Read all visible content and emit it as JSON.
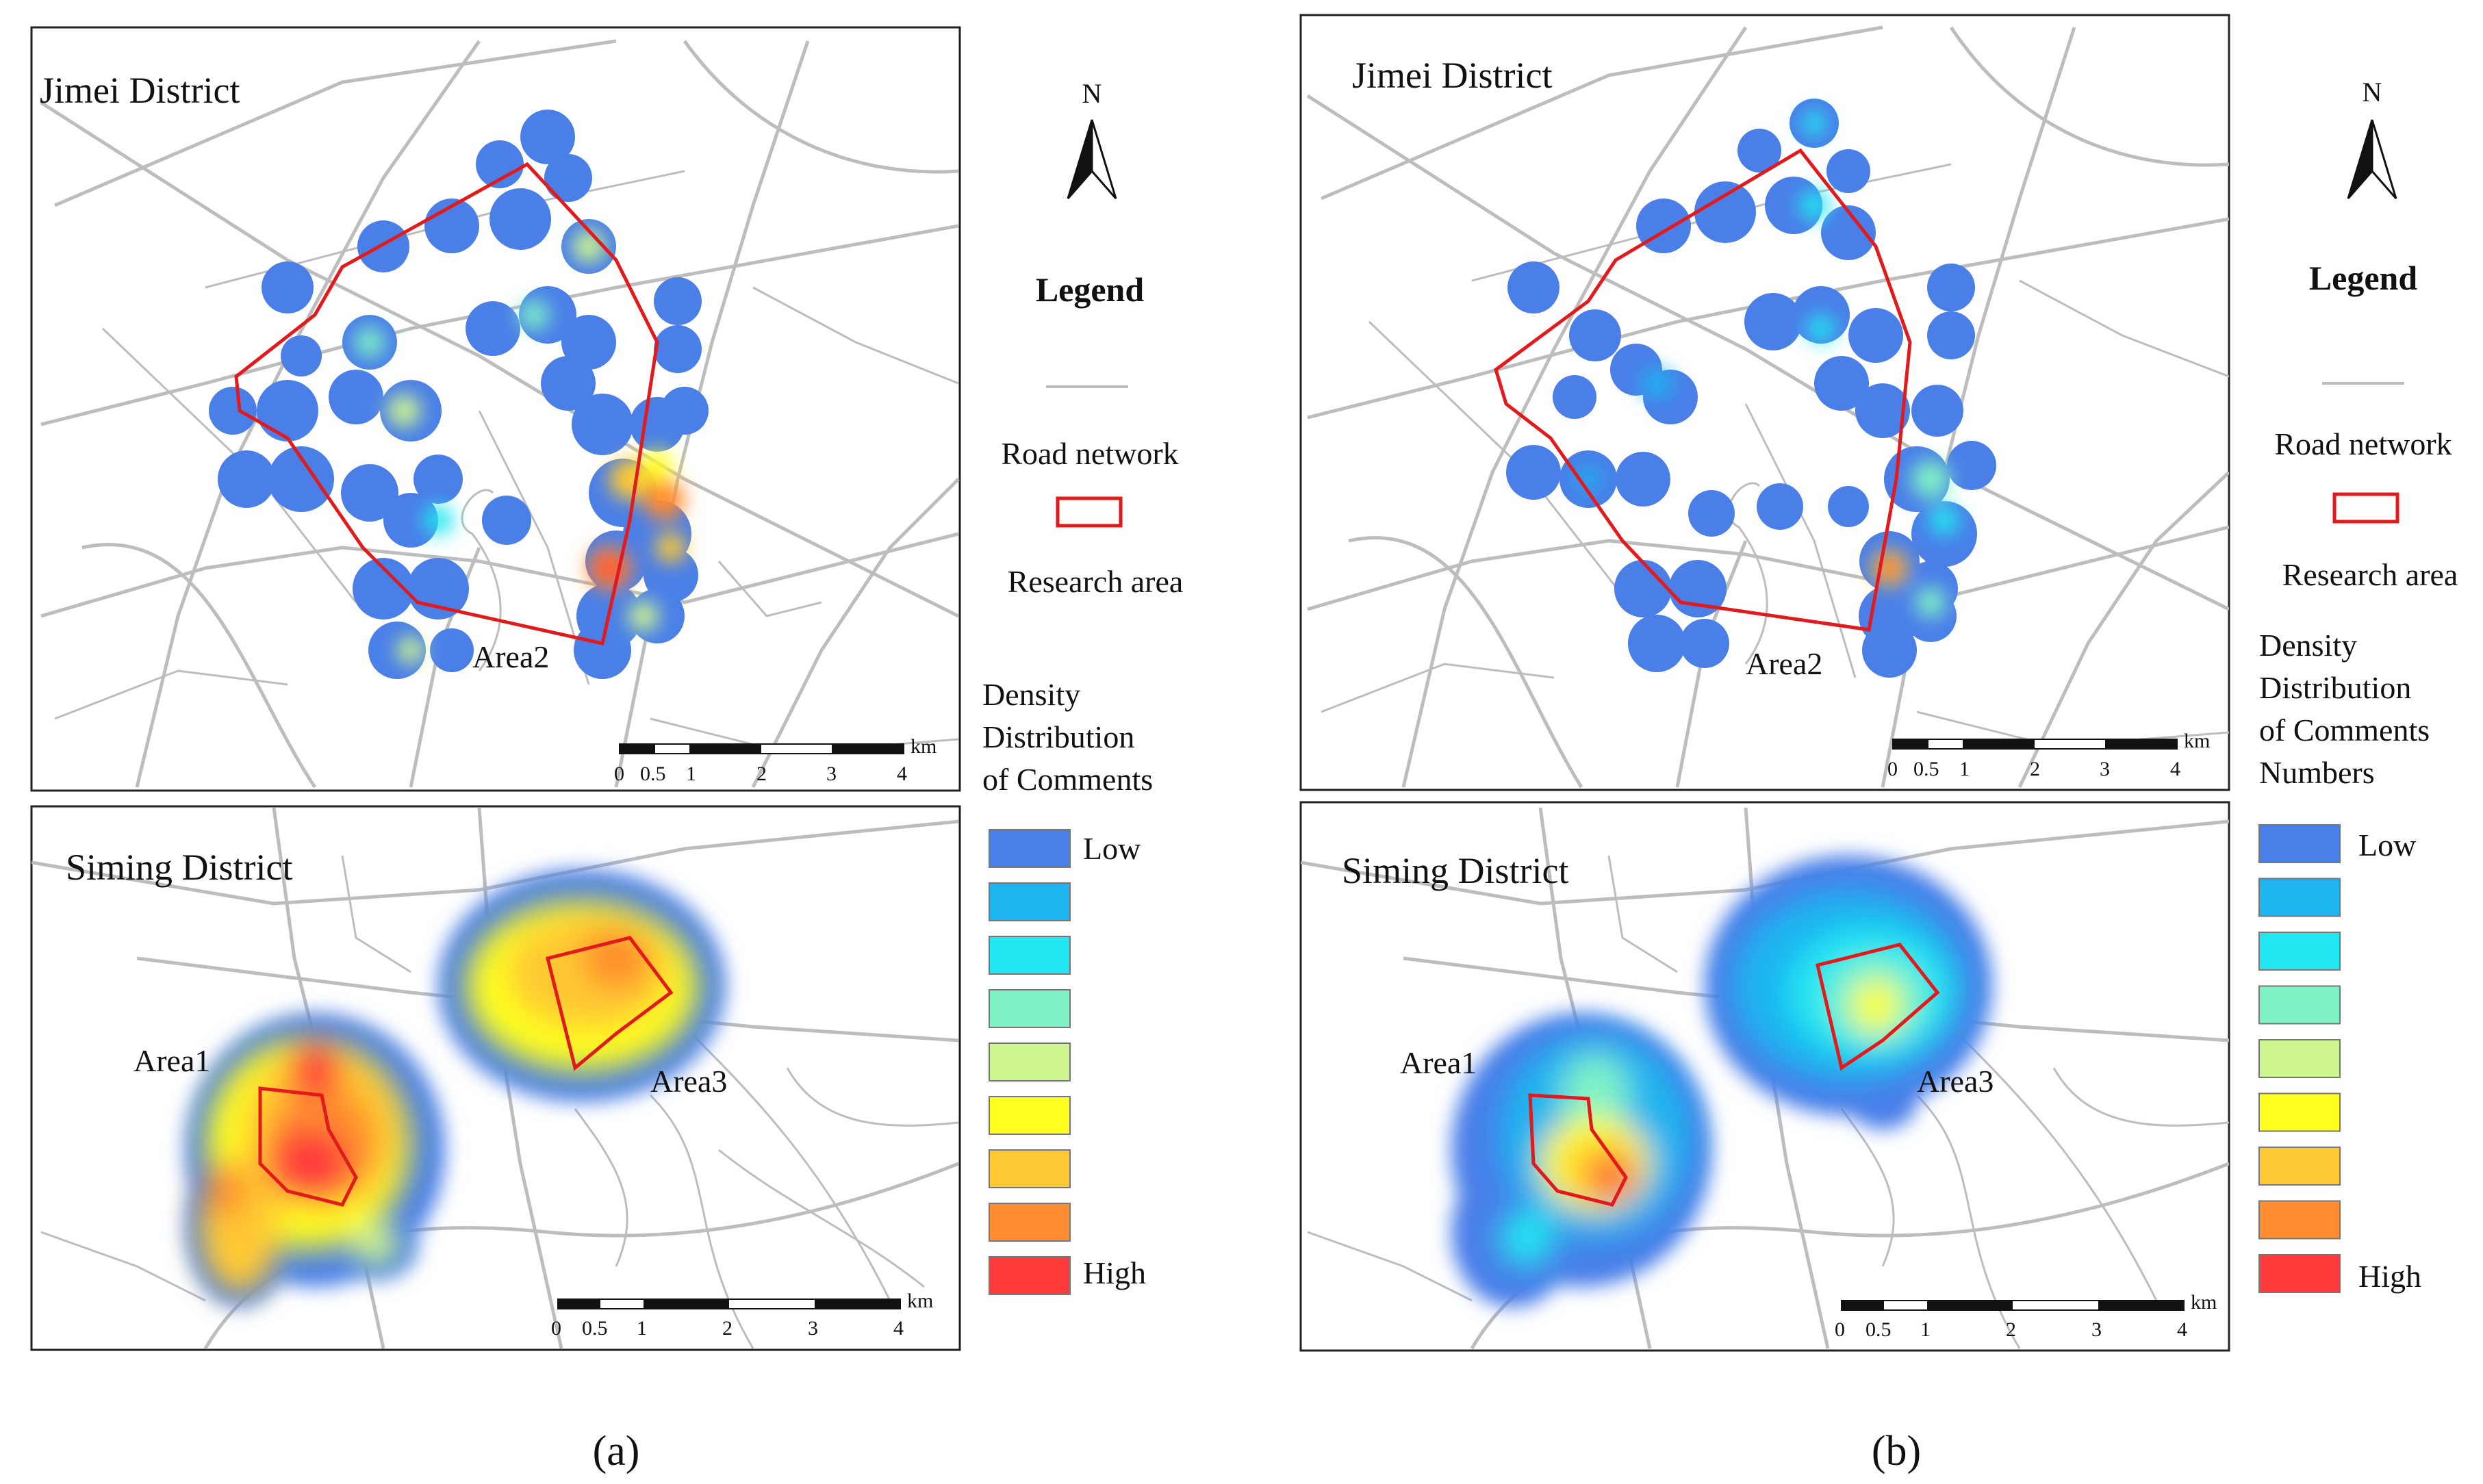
{
  "colors": {
    "road": "#bdbdbd",
    "research_area": "#e31a1c",
    "density_ramp": [
      "#4a7fe8",
      "#1eb4f0",
      "#22e6f2",
      "#7ff2c6",
      "#cdf58f",
      "#ffff1f",
      "#ffc933",
      "#ff8c2e",
      "#ff3b3b"
    ]
  },
  "panels": [
    {
      "id": "a",
      "caption": "(a)",
      "jimei": {
        "title": "Jimei District",
        "area_labels": [
          "Area2"
        ],
        "scale_unit": "km",
        "scale_ticks": [
          "0",
          "0.5",
          "1",
          "2",
          "3",
          "4"
        ]
      },
      "siming": {
        "title": "Siming District",
        "area_labels": [
          "Area1",
          "Area3"
        ],
        "scale_unit": "km",
        "scale_ticks": [
          "0",
          "0.5",
          "1",
          "2",
          "3",
          "4"
        ]
      },
      "north": "N",
      "legend": {
        "title": "Legend",
        "road_label": "Road network",
        "research_label": "Research area",
        "density_title_lines": [
          "Density",
          "Distribution",
          "of  Comments"
        ],
        "low": "Low",
        "high": "High"
      }
    },
    {
      "id": "b",
      "caption": "(b)",
      "jimei": {
        "title": "Jimei District",
        "area_labels": [
          "Area2"
        ],
        "scale_unit": "km",
        "scale_ticks": [
          "0",
          "0.5",
          "1",
          "2",
          "3",
          "4"
        ]
      },
      "siming": {
        "title": "Siming District",
        "area_labels": [
          "Area1",
          "Area3"
        ],
        "scale_unit": "km",
        "scale_ticks": [
          "0",
          "0.5",
          "1",
          "2",
          "3",
          "4"
        ]
      },
      "north": "N",
      "legend": {
        "title": "Legend",
        "road_label": "Road network",
        "research_label": "Research area",
        "density_title_lines": [
          "Density",
          "Distribution",
          "of Comments",
          "Numbers"
        ],
        "low": "Low",
        "high": "High"
      }
    }
  ]
}
